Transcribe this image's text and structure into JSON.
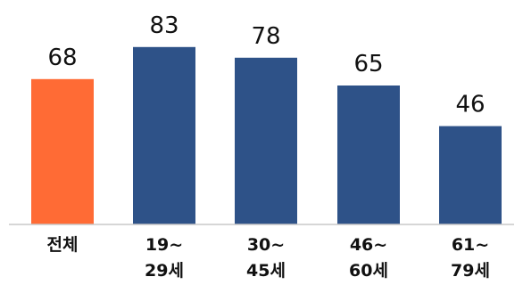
{
  "chart_data": {
    "type": "bar",
    "title": "",
    "xlabel": "",
    "ylabel": "",
    "categories": [
      [
        "전체"
      ],
      [
        "19~",
        "29세"
      ],
      [
        "30~",
        "45세"
      ],
      [
        "46~",
        "60세"
      ],
      [
        "61~",
        "79세"
      ]
    ],
    "values": [
      68,
      83,
      78,
      65,
      46
    ],
    "bar_colors": [
      "#FF6B35",
      "#2E5288",
      "#2E5288",
      "#2E5288",
      "#2E5288"
    ],
    "ylim": [
      0,
      100
    ],
    "grid": false,
    "legend": "none"
  }
}
